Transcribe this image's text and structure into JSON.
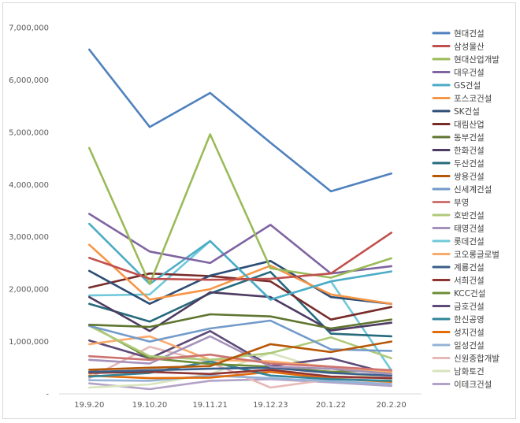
{
  "chart_data": {
    "type": "line",
    "title": "",
    "xlabel": "",
    "ylabel": "",
    "ylim": [
      0,
      7000000
    ],
    "grid": false,
    "legend_position": "right",
    "y_ticks": [
      "-",
      "1,000,000",
      "2,000,000",
      "3,000,000",
      "4,000,000",
      "5,000,000",
      "6,000,000",
      "7,000,000"
    ],
    "categories": [
      "19.9.20",
      "19.10.20",
      "19.11.21",
      "19.12.23",
      "20.1.22",
      "20.2.20"
    ],
    "series": [
      {
        "name": "현대건설",
        "color": "#4F81BD",
        "values": [
          6580000,
          5100000,
          5750000,
          4800000,
          3870000,
          4210000
        ]
      },
      {
        "name": "삼성물산",
        "color": "#C0504D",
        "values": [
          2600000,
          2200000,
          2180000,
          2200000,
          2300000,
          3080000
        ]
      },
      {
        "name": "현대산업개발",
        "color": "#9BBB59",
        "values": [
          4700000,
          2100000,
          4960000,
          2400000,
          2220000,
          2590000
        ]
      },
      {
        "name": "대우건설",
        "color": "#8064A2",
        "values": [
          3440000,
          2720000,
          2500000,
          3230000,
          2300000,
          2440000
        ]
      },
      {
        "name": "GS건설",
        "color": "#4BACC6",
        "values": [
          3250000,
          2100000,
          2920000,
          1800000,
          2150000,
          2340000
        ]
      },
      {
        "name": "포스코건설",
        "color": "#F79646",
        "values": [
          2850000,
          1800000,
          2000000,
          2450000,
          1900000,
          1720000
        ]
      },
      {
        "name": "SK건설",
        "color": "#2C4D75",
        "values": [
          2350000,
          1720000,
          2260000,
          2540000,
          1850000,
          1720000
        ]
      },
      {
        "name": "대림산업",
        "color": "#772C2A",
        "values": [
          2030000,
          2300000,
          2250000,
          2150000,
          1420000,
          1660000
        ]
      },
      {
        "name": "동부건설",
        "color": "#5F7530",
        "values": [
          1320000,
          1280000,
          1520000,
          1480000,
          1250000,
          1420000
        ]
      },
      {
        "name": "한화건설",
        "color": "#4D3B62",
        "values": [
          1850000,
          1200000,
          1940000,
          1850000,
          1210000,
          1360000
        ]
      },
      {
        "name": "두산건설",
        "color": "#276A7C",
        "values": [
          1720000,
          1380000,
          1920000,
          2330000,
          1150000,
          1100000
        ]
      },
      {
        "name": "쌍용건설",
        "color": "#B65708",
        "values": [
          460000,
          500000,
          530000,
          950000,
          800000,
          1000000
        ]
      },
      {
        "name": "신세계건설",
        "color": "#729ACA",
        "values": [
          1300000,
          1000000,
          1250000,
          1400000,
          850000,
          820000
        ]
      },
      {
        "name": "부영",
        "color": "#CD7371",
        "values": [
          720000,
          650000,
          750000,
          580000,
          520000,
          450000
        ]
      },
      {
        "name": "호반건설",
        "color": "#AFC97A",
        "values": [
          1300000,
          720000,
          650000,
          780000,
          1080000,
          680000
        ]
      },
      {
        "name": "태영건설",
        "color": "#A591BA",
        "values": [
          650000,
          580000,
          1100000,
          520000,
          480000,
          380000
        ]
      },
      {
        "name": "롯데건설",
        "color": "#6FC8DA",
        "values": [
          1880000,
          1900000,
          2920000,
          1800000,
          2150000,
          450000
        ]
      },
      {
        "name": "코오롱글로벌",
        "color": "#F9AB6B",
        "values": [
          950000,
          1100000,
          650000,
          620000,
          520000,
          420000
        ]
      },
      {
        "name": "계룡건설",
        "color": "#3A5F8A",
        "values": [
          420000,
          450000,
          480000,
          500000,
          400000,
          350000
        ]
      },
      {
        "name": "서희건설",
        "color": "#8F3432",
        "values": [
          400000,
          420000,
          380000,
          460000,
          330000,
          300000
        ]
      },
      {
        "name": "KCC건설",
        "color": "#6D8C38",
        "values": [
          1320000,
          680000,
          570000,
          520000,
          420000,
          450000
        ]
      },
      {
        "name": "금호건설",
        "color": "#5D4A78",
        "values": [
          1020000,
          680000,
          1200000,
          530000,
          680000,
          380000
        ]
      },
      {
        "name": "한신공영",
        "color": "#31869B",
        "values": [
          330000,
          400000,
          620000,
          350000,
          280000,
          250000
        ]
      },
      {
        "name": "성지건설",
        "color": "#E46C0A",
        "values": [
          350000,
          300000,
          310000,
          420000,
          290000,
          230000
        ]
      },
      {
        "name": "일성건설",
        "color": "#95B3D7",
        "values": [
          260000,
          250000,
          350000,
          300000,
          240000,
          190000
        ]
      },
      {
        "name": "신원종합개발",
        "color": "#E6B9B8",
        "values": [
          300000,
          900000,
          600000,
          120000,
          280000,
          320000
        ]
      },
      {
        "name": "남화토건",
        "color": "#D7E4BD",
        "values": [
          120000,
          180000,
          380000,
          780000,
          430000,
          280000
        ]
      },
      {
        "name": "이테크건설",
        "color": "#B3A2C7",
        "values": [
          200000,
          90000,
          250000,
          280000,
          220000,
          150000
        ]
      }
    ]
  }
}
